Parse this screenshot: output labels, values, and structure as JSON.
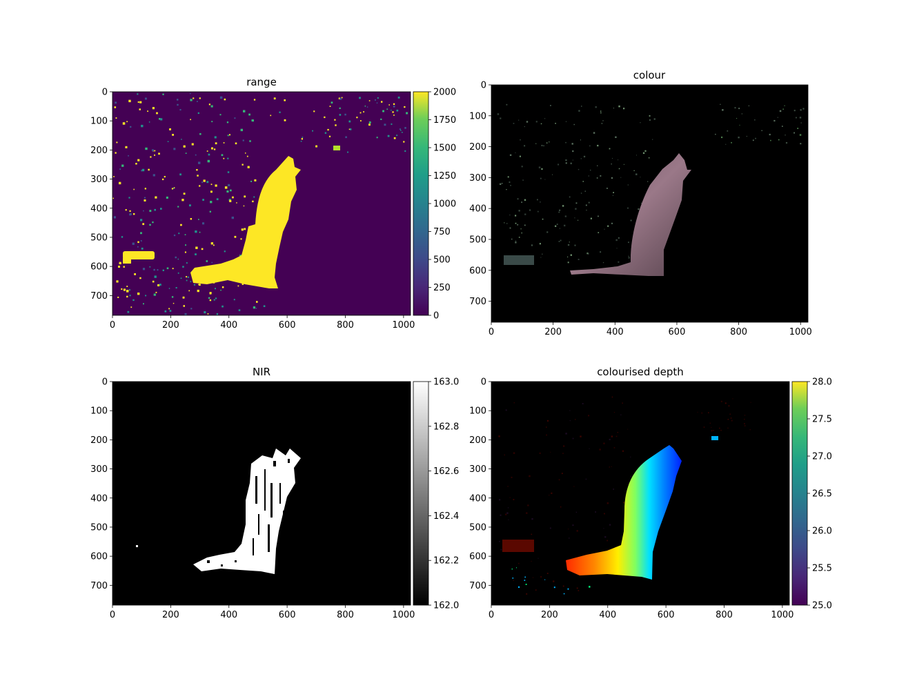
{
  "chart_data": [
    {
      "type": "heatmap",
      "title": "range",
      "colormap": "viridis",
      "image_size": [
        1024,
        768
      ],
      "xticks": [
        0,
        200,
        400,
        600,
        800,
        1000
      ],
      "yticks": [
        0,
        100,
        200,
        300,
        400,
        500,
        600,
        700
      ],
      "colorbar": {
        "range": [
          0,
          2000
        ],
        "ticks": [
          0,
          250,
          500,
          750,
          1000,
          1250,
          1500,
          1750,
          2000
        ]
      },
      "background_value": 0,
      "foreground_value": 2000,
      "note": "mostly 0 with a high-valued (~2000) L-shaped object and scattered speckle"
    },
    {
      "type": "heatmap",
      "title": "colour",
      "colormap": "rgb",
      "image_size": [
        1024,
        768
      ],
      "xticks": [
        0,
        200,
        400,
        600,
        800,
        1000
      ],
      "yticks": [
        0,
        100,
        200,
        300,
        400,
        500,
        600,
        700
      ],
      "colorbar": null
    },
    {
      "type": "heatmap",
      "title": "NIR",
      "colormap": "gray",
      "image_size": [
        1024,
        768
      ],
      "xticks": [
        0,
        200,
        400,
        600,
        800,
        1000
      ],
      "yticks": [
        0,
        100,
        200,
        300,
        400,
        500,
        600,
        700
      ],
      "colorbar": {
        "range": [
          162.0,
          163.0
        ],
        "ticks": [
          "162.0",
          "162.2",
          "162.4",
          "162.6",
          "162.8",
          "163.0"
        ]
      }
    },
    {
      "type": "heatmap",
      "title": "colourised depth",
      "colormap": "jet-on-black",
      "image_size": [
        1024,
        768
      ],
      "xticks": [
        0,
        200,
        400,
        600,
        800,
        1000
      ],
      "yticks": [
        0,
        100,
        200,
        300,
        400,
        500,
        600,
        700
      ],
      "colorbar": {
        "range": [
          25.0,
          28.0
        ],
        "ticks": [
          "25.0",
          "25.5",
          "26.0",
          "26.5",
          "27.0",
          "27.5",
          "28.0"
        ],
        "colormap": "viridis"
      }
    }
  ]
}
